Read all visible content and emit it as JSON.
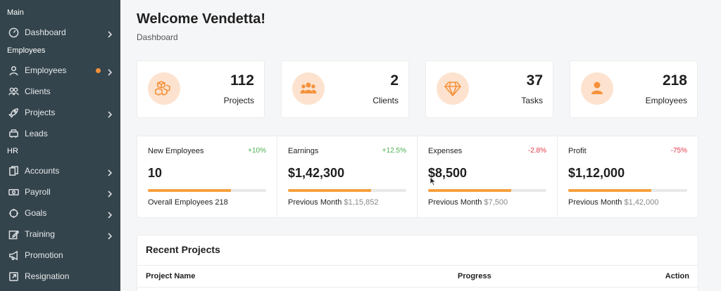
{
  "sidebar": {
    "sections": {
      "main": "Main",
      "employees": "Employees",
      "hr": "HR"
    },
    "items": [
      {
        "label": "Dashboard",
        "icon": "dashboard-icon",
        "chevron": true
      },
      {
        "label": "Employees",
        "icon": "user-icon",
        "chevron": true,
        "dot": true
      },
      {
        "label": "Clients",
        "icon": "users-icon",
        "chevron": false
      },
      {
        "label": "Projects",
        "icon": "rocket-icon",
        "chevron": true
      },
      {
        "label": "Leads",
        "icon": "ticket-icon",
        "chevron": false
      },
      {
        "label": "Accounts",
        "icon": "files-icon",
        "chevron": true
      },
      {
        "label": "Payroll",
        "icon": "money-icon",
        "chevron": true
      },
      {
        "label": "Goals",
        "icon": "crosshair-icon",
        "chevron": true
      },
      {
        "label": "Training",
        "icon": "edit-icon",
        "chevron": true
      },
      {
        "label": "Promotion",
        "icon": "bullhorn-icon",
        "chevron": false
      },
      {
        "label": "Resignation",
        "icon": "external-link-icon",
        "chevron": false
      }
    ]
  },
  "header": {
    "title": "Welcome Vendetta!",
    "breadcrumb": "Dashboard"
  },
  "stats": [
    {
      "value": "112",
      "label": "Projects",
      "icon": "cubes-icon"
    },
    {
      "value": "2",
      "label": "Clients",
      "icon": "group-icon"
    },
    {
      "value": "37",
      "label": "Tasks",
      "icon": "diamond-icon"
    },
    {
      "value": "218",
      "label": "Employees",
      "icon": "person-icon"
    }
  ],
  "kpis": [
    {
      "title": "New Employees",
      "delta": "+10%",
      "delta_color": "#4caf50",
      "value": "10",
      "progress": 0.7,
      "foot_label": "Overall Employees 218",
      "foot_sub": ""
    },
    {
      "title": "Earnings",
      "delta": "+12.5%",
      "delta_color": "#4caf50",
      "value": "$1,42,300",
      "progress": 0.7,
      "foot_label": "Previous Month",
      "foot_sub": "$1,15,852"
    },
    {
      "title": "Expenses",
      "delta": "-2.8%",
      "delta_color": "#e53946",
      "value": "$8,500",
      "progress": 0.7,
      "foot_label": "Previous Month",
      "foot_sub": "$7,500"
    },
    {
      "title": "Profit",
      "delta": "-75%",
      "delta_color": "#e53946",
      "value": "$1,12,000",
      "progress": 0.7,
      "foot_label": "Previous Month",
      "foot_sub": "$1,42,000"
    }
  ],
  "recent_projects": {
    "title": "Recent Projects",
    "columns": [
      "Project Name",
      "Progress",
      "Action"
    ]
  },
  "colors": {
    "sidebar_bg": "#34444c",
    "accent": "#f5a03d",
    "icon_bg": "#fde3cf",
    "positive": "#4caf50",
    "negative": "#e53946"
  }
}
